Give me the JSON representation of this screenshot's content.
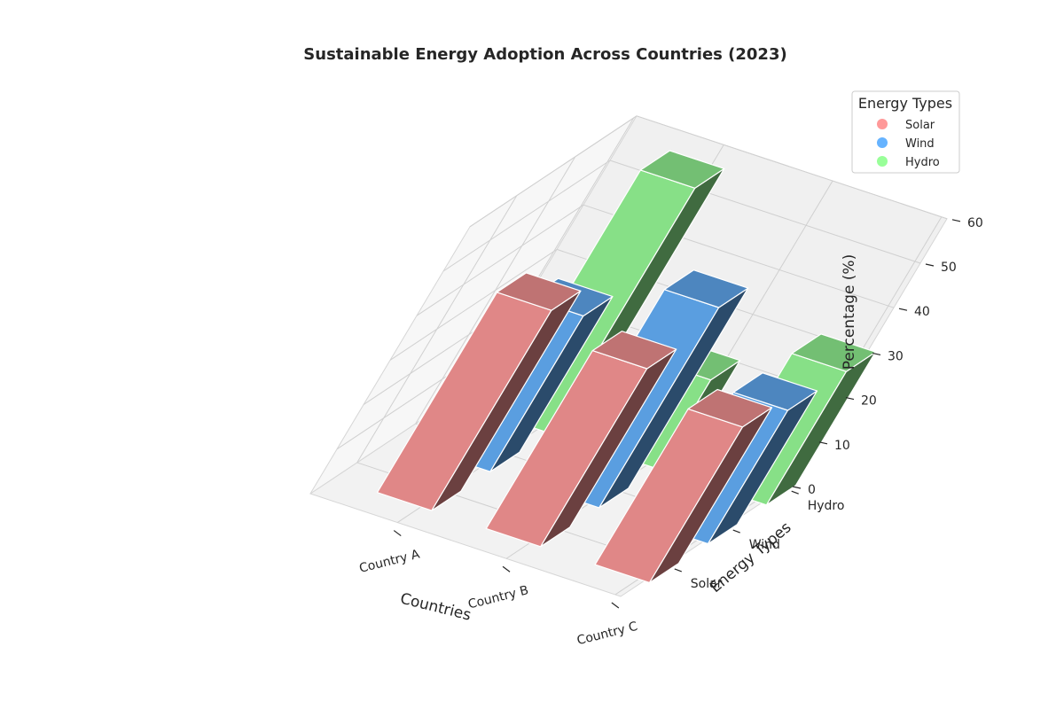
{
  "chart_data": {
    "type": "bar3d",
    "title": "Sustainable Energy Adoption Across Countries (2023)",
    "xlabel": "Countries",
    "ylabel": "Energy Types",
    "zlabel": "Percentage (%)",
    "categories": [
      "Country A",
      "Country B",
      "Country C"
    ],
    "y_categories": [
      "Solar",
      "Wind",
      "Hydro"
    ],
    "zlim": [
      0,
      60
    ],
    "zticks": [
      0,
      10,
      20,
      30,
      40,
      50,
      60
    ],
    "series": [
      {
        "name": "Solar",
        "values": [
          45,
          40,
          35
        ],
        "color": "#ff9999"
      },
      {
        "name": "Wind",
        "values": [
          35,
          45,
          30
        ],
        "color": "#66b3ff"
      },
      {
        "name": "Hydro",
        "values": [
          55,
          20,
          30
        ],
        "color": "#99ff99"
      }
    ],
    "legend": {
      "title": "Energy Types",
      "position": "top-right"
    },
    "grid": true
  }
}
